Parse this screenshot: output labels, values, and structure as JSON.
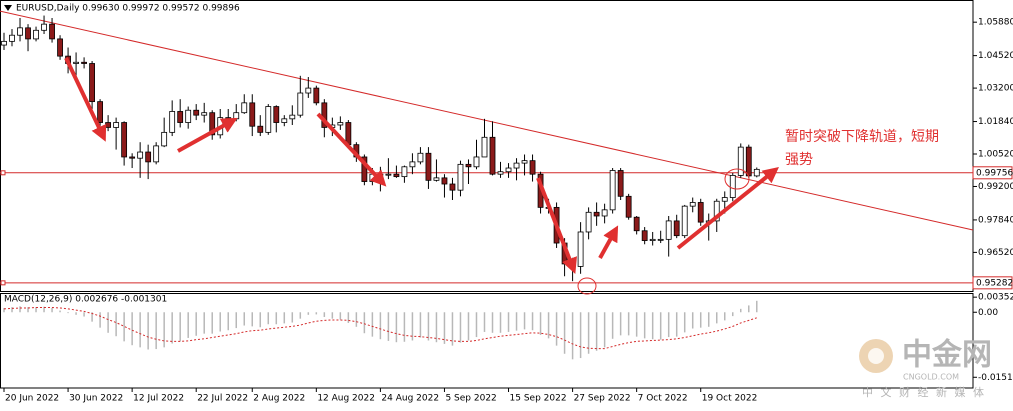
{
  "chart_data": [
    {
      "type": "candlestick",
      "title": "EURUSD,Daily  0.99630 0.99972 0.99572 0.99896",
      "open": [
        1.0495,
        1.051,
        1.0535,
        1.0565,
        1.052,
        1.0555,
        1.058,
        1.052,
        1.045,
        1.042,
        1.0425,
        1.042,
        1.0265,
        1.018,
        1.016,
        1.018,
        1.004,
        1.0035,
        1.006,
        1.002,
        1.0085,
        1.014,
        1.0225,
        1.018,
        1.023,
        1.021,
        1.022,
        1.013,
        1.02,
        1.0195,
        1.022,
        1.026,
        1.0165,
        1.014,
        1.0245,
        1.018,
        1.0195,
        1.021,
        1.03,
        1.032,
        1.026,
        1.016,
        1.017,
        1.018,
        1.009,
        1.004,
        0.994,
        0.997,
        0.997,
        0.997,
        0.996,
        1.0,
        1.002,
        1.0055,
        0.9945,
        0.9955,
        0.993,
        0.9905,
        1.001,
        1.0,
        1.004,
        1.012,
        0.997,
        0.998,
        0.9995,
        1.0015,
        1.0025,
        0.997,
        0.9835,
        0.9835,
        0.969,
        0.9605,
        0.9595,
        0.9735,
        0.9815,
        0.98,
        0.9825,
        0.9985,
        0.988,
        0.9795,
        0.974,
        0.97,
        0.9705,
        0.9705,
        0.978,
        0.972,
        0.984,
        0.9855,
        0.9775,
        0.978,
        0.986,
        0.9875,
        0.9965,
        1.008,
        0.9963
      ],
      "high": [
        1.0545,
        1.056,
        1.0605,
        1.058,
        1.057,
        1.0615,
        1.0605,
        1.0535,
        1.0485,
        1.0465,
        1.0445,
        1.043,
        1.0275,
        1.021,
        1.02,
        1.0185,
        1.0055,
        1.01,
        1.009,
        1.01,
        1.02,
        1.027,
        1.0275,
        1.0245,
        1.0255,
        1.026,
        1.023,
        1.0235,
        1.0235,
        1.0255,
        1.0295,
        1.0295,
        1.021,
        1.0255,
        1.025,
        1.021,
        1.025,
        1.037,
        1.0365,
        1.033,
        1.0275,
        1.02,
        1.0205,
        1.019,
        1.01,
        1.005,
        0.9995,
        1.0,
        1.0035,
        1.0005,
        1.0005,
        1.0055,
        1.008,
        1.008,
        1.003,
        0.997,
        0.9955,
        1.0025,
        1.003,
        1.011,
        1.0195,
        1.0185,
        1.002,
        1.0015,
        1.0035,
        1.005,
        1.005,
        0.998,
        0.987,
        0.9855,
        0.971,
        0.963,
        0.9775,
        0.9835,
        0.9855,
        0.985,
        0.9995,
        0.9995,
        0.989,
        0.98,
        0.9755,
        0.9735,
        0.974,
        0.98,
        0.9805,
        0.9845,
        0.9875,
        0.987,
        0.981,
        0.987,
        0.99,
        0.9975,
        1.0095,
        1.009,
        0.99972
      ],
      "low": [
        1.0475,
        1.049,
        1.051,
        1.047,
        1.051,
        1.054,
        1.0505,
        1.0435,
        1.038,
        1.0365,
        1.04,
        1.0235,
        1.016,
        1.0145,
        1.007,
        1.0005,
        0.9995,
        0.9955,
        0.995,
        1.001,
        1.008,
        1.0125,
        1.016,
        1.0155,
        1.019,
        1.018,
        1.011,
        1.0115,
        1.0145,
        1.0185,
        1.0215,
        1.0125,
        1.0125,
        1.013,
        1.014,
        1.0165,
        1.017,
        1.02,
        1.028,
        1.025,
        1.012,
        1.0125,
        1.015,
        1.0075,
        1.002,
        0.9925,
        0.9925,
        0.99,
        0.995,
        0.9955,
        0.9935,
        0.997,
        1.001,
        0.991,
        0.994,
        0.9875,
        0.9865,
        0.988,
        0.993,
        0.999,
        1.004,
        0.9965,
        0.9955,
        0.9955,
        0.9945,
        0.9965,
        0.994,
        0.981,
        0.981,
        0.967,
        0.9555,
        0.9535,
        0.9565,
        0.9705,
        0.976,
        0.977,
        0.981,
        0.9865,
        0.9785,
        0.9725,
        0.9685,
        0.968,
        0.969,
        0.9635,
        0.971,
        0.971,
        0.9815,
        0.976,
        0.97,
        0.9735,
        0.981,
        0.986,
        0.9955,
        0.9955,
        0.99572
      ],
      "close": [
        1.051,
        1.0535,
        1.0565,
        1.052,
        1.0555,
        1.058,
        1.052,
        1.045,
        1.042,
        1.0425,
        1.042,
        1.0265,
        1.018,
        1.016,
        1.018,
        1.004,
        1.0035,
        1.006,
        1.002,
        1.0085,
        1.014,
        1.0225,
        1.018,
        1.023,
        1.021,
        1.022,
        1.013,
        1.02,
        1.0195,
        1.022,
        1.026,
        1.0165,
        1.014,
        1.0245,
        1.018,
        1.0195,
        1.021,
        1.03,
        1.032,
        1.026,
        1.016,
        1.017,
        1.018,
        1.009,
        1.004,
        0.994,
        0.997,
        0.997,
        0.997,
        0.996,
        1.0,
        1.002,
        1.0055,
        0.9945,
        0.9955,
        0.993,
        0.9905,
        1.001,
        1.0,
        1.004,
        1.012,
        0.997,
        0.998,
        0.9995,
        1.0015,
        1.0025,
        0.997,
        0.9835,
        0.9835,
        0.969,
        0.9605,
        0.9595,
        0.9735,
        0.9815,
        0.98,
        0.9825,
        0.9985,
        0.988,
        0.9795,
        0.974,
        0.97,
        0.9705,
        0.9705,
        0.978,
        0.972,
        0.984,
        0.9855,
        0.9775,
        0.978,
        0.986,
        0.9875,
        0.9965,
        1.008,
        0.9963,
        0.99896
      ],
      "up_color": "#ffffff",
      "down_color": "#8b1a1a",
      "xlim": [
        -0.5,
        121
      ],
      "xticks": [
        {
          "value": 0,
          "label": "20 Jun 2022"
        },
        {
          "value": 8,
          "label": "30 Jun 2022"
        },
        {
          "value": 16,
          "label": "12 Jul 2022"
        },
        {
          "value": 24,
          "label": "22 Jul 2022"
        },
        {
          "value": 31,
          "label": "2 Aug 2022"
        },
        {
          "value": 39,
          "label": "12 Aug 2022"
        },
        {
          "value": 47,
          "label": "24 Aug 2022"
        },
        {
          "value": 55,
          "label": "5 Sep 2022"
        },
        {
          "value": 63,
          "label": "15 Sep 2022"
        },
        {
          "value": 71,
          "label": "27 Sep 2022"
        },
        {
          "value": 79,
          "label": "7 Oct 2022"
        },
        {
          "value": 87,
          "label": "19 Oct 2022"
        }
      ],
      "ylim": [
        0.9495,
        1.0666
      ],
      "yticks": [
        {
          "value": 1.0588,
          "label": "1.05880"
        },
        {
          "value": 1.0452,
          "label": "1.04520"
        },
        {
          "value": 1.032,
          "label": "1.03200"
        },
        {
          "value": 1.0184,
          "label": "1.01840"
        },
        {
          "value": 1.0052,
          "label": "1.00520"
        },
        {
          "value": 0.992,
          "label": "0.99200"
        },
        {
          "value": 0.9784,
          "label": "0.97840"
        },
        {
          "value": 0.9652,
          "label": "0.96520"
        }
      ],
      "hlines": [
        {
          "value": 0.99756,
          "label": "0.99756"
        },
        {
          "value": 0.95282,
          "label": "0.95282"
        }
      ],
      "line_color": "#d42a2a",
      "trendline": {
        "x": [
          -0.5,
          121
        ],
        "y": [
          1.0633,
          0.9743
        ]
      },
      "annotation": [
        "暂时突破下降轨道，短期",
        "强势"
      ]
    },
    {
      "type": "macd",
      "title": "MACD(12,26,9) 0.002676 -0.001301",
      "values": [
        0.001,
        0.0012,
        0.0014,
        0.0012,
        0.0012,
        0.0013,
        0.001,
        0.0004,
        -0.0002,
        -0.0006,
        -0.001,
        -0.0022,
        -0.0036,
        -0.0048,
        -0.0056,
        -0.0068,
        -0.0077,
        -0.0082,
        -0.0087,
        -0.0086,
        -0.0082,
        -0.0073,
        -0.0068,
        -0.006,
        -0.0055,
        -0.005,
        -0.005,
        -0.0045,
        -0.0042,
        -0.0037,
        -0.0031,
        -0.0033,
        -0.0035,
        -0.0028,
        -0.0028,
        -0.0026,
        -0.0024,
        -0.0015,
        -0.0006,
        -0.0005,
        -0.0011,
        -0.0015,
        -0.0017,
        -0.0025,
        -0.0034,
        -0.0049,
        -0.0057,
        -0.0063,
        -0.0067,
        -0.007,
        -0.0069,
        -0.0066,
        -0.0059,
        -0.0066,
        -0.007,
        -0.0074,
        -0.0078,
        -0.0071,
        -0.0066,
        -0.0058,
        -0.0046,
        -0.0048,
        -0.0048,
        -0.0046,
        -0.0043,
        -0.004,
        -0.0042,
        -0.0053,
        -0.0061,
        -0.0078,
        -0.0097,
        -0.011,
        -0.0107,
        -0.0097,
        -0.009,
        -0.0082,
        -0.0062,
        -0.0054,
        -0.0054,
        -0.0057,
        -0.0061,
        -0.0063,
        -0.0064,
        -0.0058,
        -0.0057,
        -0.0047,
        -0.0038,
        -0.0036,
        -0.0034,
        -0.0026,
        -0.0019,
        -0.0009,
        0.0008,
        0.0016,
        0.002676
      ],
      "signal": [
        0.0008,
        0.0009,
        0.001,
        0.001,
        0.0011,
        0.0011,
        0.0011,
        0.001,
        0.0008,
        0.0005,
        0.0002,
        -0.0003,
        -0.0009,
        -0.0017,
        -0.0024,
        -0.0033,
        -0.0042,
        -0.005,
        -0.0058,
        -0.0063,
        -0.0067,
        -0.0068,
        -0.0068,
        -0.0067,
        -0.0064,
        -0.0062,
        -0.0059,
        -0.0056,
        -0.0053,
        -0.005,
        -0.0046,
        -0.0043,
        -0.0042,
        -0.0039,
        -0.0037,
        -0.0035,
        -0.0033,
        -0.003,
        -0.0025,
        -0.0021,
        -0.0019,
        -0.0018,
        -0.0018,
        -0.0019,
        -0.0022,
        -0.0027,
        -0.0033,
        -0.0039,
        -0.0045,
        -0.005,
        -0.0054,
        -0.0056,
        -0.0057,
        -0.0059,
        -0.0061,
        -0.0064,
        -0.0067,
        -0.0068,
        -0.0068,
        -0.0066,
        -0.0062,
        -0.0059,
        -0.0056,
        -0.0054,
        -0.0052,
        -0.005,
        -0.0048,
        -0.0049,
        -0.0052,
        -0.0057,
        -0.0065,
        -0.0074,
        -0.0081,
        -0.0084,
        -0.0085,
        -0.0085,
        -0.008,
        -0.0075,
        -0.0071,
        -0.0068,
        -0.0067,
        -0.0066,
        -0.0065,
        -0.0064,
        -0.0062,
        -0.0059,
        -0.0055,
        -0.0051,
        -0.0048,
        -0.0044,
        -0.0039,
        -0.0033,
        -0.0025,
        -0.0019,
        -0.001301
      ],
      "bar_color": "#b8b8b8",
      "signal_color": "#d42a2a",
      "xlim": [
        -0.5,
        121
      ],
      "ylim": [
        -0.0177,
        0.0045
      ],
      "yticks": [
        {
          "value": 0.003527,
          "label": "0.003527"
        },
        {
          "value": 0,
          "label": "0.00"
        },
        {
          "value": -0.015193,
          "label": "-0.015193"
        }
      ]
    }
  ],
  "watermark": {
    "name": "中金网",
    "site": "CNGOLD.COM",
    "tagline": "中 文 财 经 新 媒 体"
  }
}
